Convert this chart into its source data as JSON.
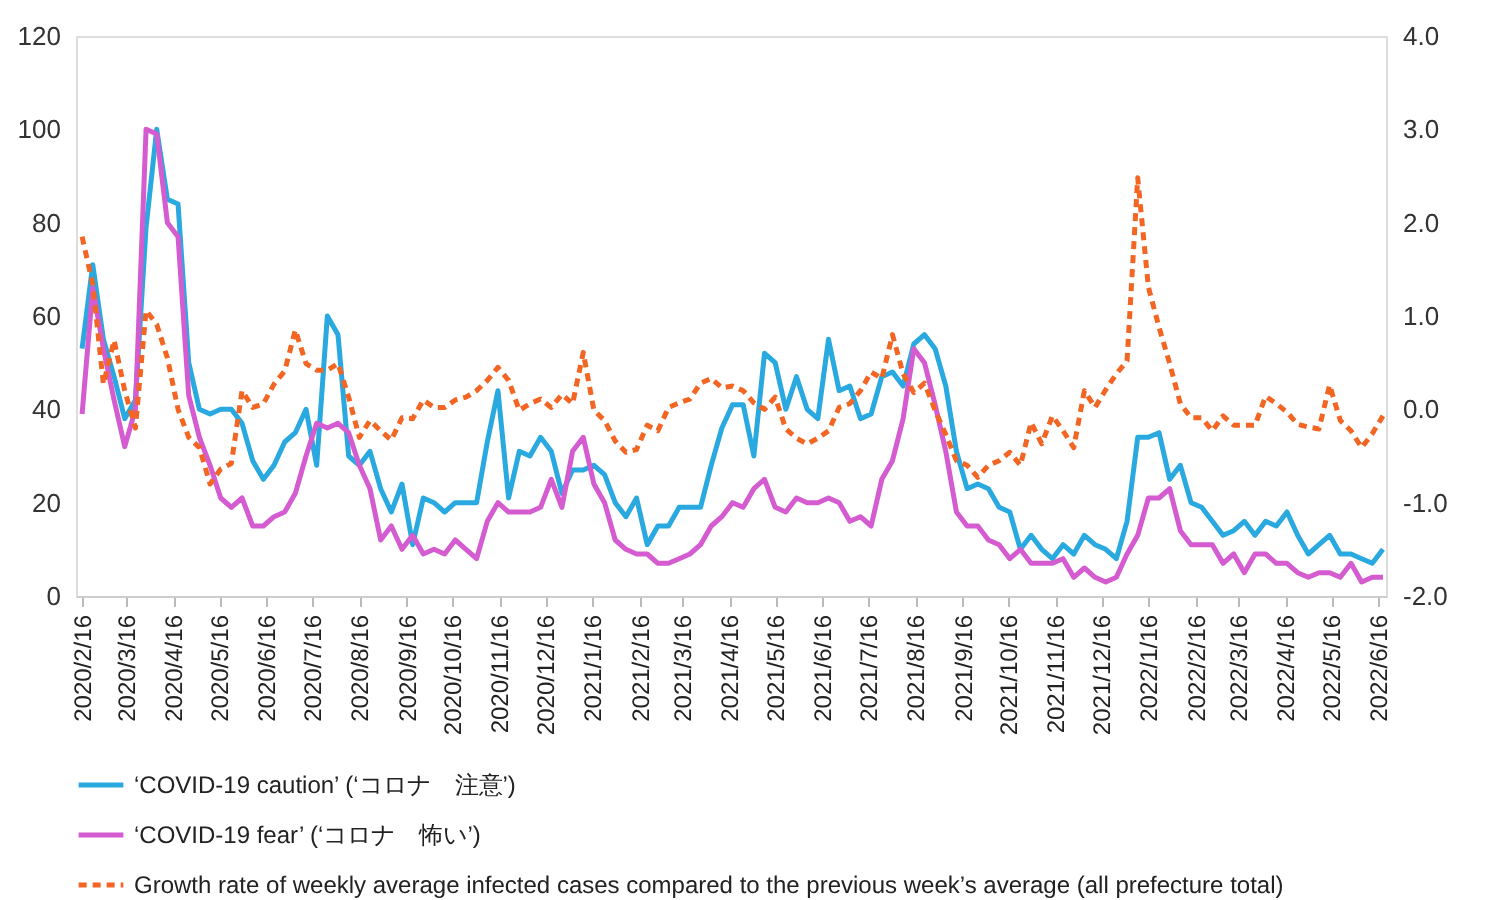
{
  "chart_data": {
    "type": "line",
    "x": [
      "2020-02-16",
      "2020-02-23",
      "2020-03-01",
      "2020-03-08",
      "2020-03-15",
      "2020-03-22",
      "2020-03-29",
      "2020-04-05",
      "2020-04-12",
      "2020-04-19",
      "2020-04-26",
      "2020-05-03",
      "2020-05-10",
      "2020-05-17",
      "2020-05-24",
      "2020-05-31",
      "2020-06-07",
      "2020-06-14",
      "2020-06-21",
      "2020-06-28",
      "2020-07-05",
      "2020-07-12",
      "2020-07-19",
      "2020-07-26",
      "2020-08-02",
      "2020-08-09",
      "2020-08-16",
      "2020-08-23",
      "2020-08-30",
      "2020-09-06",
      "2020-09-13",
      "2020-09-20",
      "2020-09-27",
      "2020-10-04",
      "2020-10-11",
      "2020-10-18",
      "2020-10-25",
      "2020-11-01",
      "2020-11-08",
      "2020-11-15",
      "2020-11-22",
      "2020-11-29",
      "2020-12-06",
      "2020-12-13",
      "2020-12-20",
      "2020-12-27",
      "2021-01-03",
      "2021-01-10",
      "2021-01-17",
      "2021-01-24",
      "2021-01-31",
      "2021-02-07",
      "2021-02-14",
      "2021-02-21",
      "2021-02-28",
      "2021-03-07",
      "2021-03-14",
      "2021-03-21",
      "2021-03-28",
      "2021-04-04",
      "2021-04-11",
      "2021-04-18",
      "2021-04-25",
      "2021-05-02",
      "2021-05-09",
      "2021-05-16",
      "2021-05-23",
      "2021-05-30",
      "2021-06-06",
      "2021-06-13",
      "2021-06-20",
      "2021-06-27",
      "2021-07-04",
      "2021-07-11",
      "2021-07-18",
      "2021-07-25",
      "2021-08-01",
      "2021-08-08",
      "2021-08-15",
      "2021-08-22",
      "2021-08-29",
      "2021-09-05",
      "2021-09-12",
      "2021-09-19",
      "2021-09-26",
      "2021-10-03",
      "2021-10-10",
      "2021-10-17",
      "2021-10-24",
      "2021-10-31",
      "2021-11-07",
      "2021-11-14",
      "2021-11-21",
      "2021-11-28",
      "2021-12-05",
      "2021-12-12",
      "2021-12-19",
      "2021-12-26",
      "2022-01-02",
      "2022-01-09",
      "2022-01-16",
      "2022-01-23",
      "2022-01-30",
      "2022-02-06",
      "2022-02-13",
      "2022-02-20",
      "2022-02-27",
      "2022-03-06",
      "2022-03-13",
      "2022-03-20",
      "2022-03-27",
      "2022-04-03",
      "2022-04-10",
      "2022-04-17",
      "2022-04-24",
      "2022-05-01",
      "2022-05-08",
      "2022-05-15",
      "2022-05-22",
      "2022-05-29",
      "2022-06-05",
      "2022-06-12",
      "2022-06-19"
    ],
    "series": [
      {
        "name": "‘COVID-19 caution’ (‘コロナ　注意’)",
        "color": "#29a9e0",
        "line_style": "solid",
        "values": [
          53,
          71,
          55,
          47,
          38,
          42,
          79,
          100,
          85,
          84,
          50,
          40,
          39,
          40,
          40,
          37,
          29,
          25,
          28,
          33,
          35,
          40,
          28,
          60,
          56,
          30,
          28,
          31,
          23,
          18,
          24,
          11,
          21,
          20,
          18,
          20,
          20,
          20,
          33,
          44,
          21,
          31,
          30,
          34,
          31,
          22,
          27,
          27,
          28,
          26,
          20,
          17,
          21,
          11,
          15,
          15,
          19,
          19,
          19,
          28,
          36,
          41,
          41,
          30,
          52,
          50,
          40,
          47,
          40,
          38,
          55,
          44,
          45,
          38,
          39,
          47,
          48,
          45,
          54,
          56,
          53,
          45,
          31,
          23,
          24,
          23,
          19,
          18,
          10,
          13,
          10,
          8,
          11,
          9,
          13,
          11,
          10,
          8,
          16,
          34,
          34,
          35,
          25,
          28,
          20,
          19,
          16,
          13,
          14,
          16,
          13,
          16,
          15,
          18,
          13,
          9,
          11,
          13,
          9,
          9,
          8,
          7,
          10
        ]
      },
      {
        "name": "‘COVID-19  fear’ (‘コロナ　怖い’)",
        "color": "#d45bd0",
        "line_style": "solid",
        "values": [
          39,
          66,
          53,
          42,
          32,
          40,
          100,
          99,
          80,
          77,
          43,
          34,
          28,
          21,
          19,
          21,
          15,
          15,
          17,
          18,
          22,
          30,
          37,
          36,
          37,
          35,
          28,
          23,
          12,
          15,
          10,
          13,
          9,
          10,
          9,
          12,
          10,
          8,
          16,
          20,
          18,
          18,
          18,
          19,
          25,
          19,
          31,
          34,
          24,
          20,
          12,
          10,
          9,
          9,
          7,
          7,
          8,
          9,
          11,
          15,
          17,
          20,
          19,
          23,
          25,
          19,
          18,
          21,
          20,
          20,
          21,
          20,
          16,
          17,
          15,
          25,
          29,
          38,
          53,
          50,
          41,
          31,
          18,
          15,
          15,
          12,
          11,
          8,
          10,
          7,
          7,
          7,
          8,
          4,
          6,
          4,
          3,
          4,
          9,
          13,
          21,
          21,
          23,
          14,
          11,
          11,
          11,
          7,
          9,
          5,
          9,
          9,
          7,
          7,
          5,
          4,
          5,
          5,
          4,
          7,
          3,
          4,
          4
        ]
      },
      {
        "name": "Growth rate of weekly average infected cases compared to the previous week’s average (all prefecture total)",
        "color": "#f26522",
        "line_style": "dashed",
        "axis": "y2",
        "values": [
          1.85,
          1.34,
          0.27,
          0.74,
          0.2,
          -0.2,
          1.06,
          0.91,
          0.55,
          0,
          -0.3,
          -0.41,
          -0.8,
          -0.64,
          -0.58,
          0.2,
          0.02,
          0.06,
          0.27,
          0.41,
          0.85,
          0.49,
          0.42,
          0.42,
          0.49,
          0.13,
          -0.3,
          -0.12,
          -0.23,
          -0.33,
          -0.09,
          -0.1,
          0.1,
          0.02,
          0.02,
          0.1,
          0.13,
          0.2,
          0.31,
          0.45,
          0.31,
          -0.01,
          0.06,
          0.11,
          0.02,
          0.16,
          0.06,
          0.61,
          -0.01,
          -0.12,
          -0.34,
          -0.46,
          -0.43,
          -0.17,
          -0.23,
          0.02,
          0.07,
          0.11,
          0.28,
          0.33,
          0.23,
          0.25,
          0.2,
          0.07,
          0,
          0.13,
          -0.21,
          -0.31,
          -0.37,
          -0.31,
          -0.23,
          0.02,
          0.06,
          0.2,
          0.4,
          0.33,
          0.8,
          0.38,
          0.18,
          0.28,
          -0.01,
          -0.27,
          -0.55,
          -0.6,
          -0.73,
          -0.6,
          -0.55,
          -0.46,
          -0.6,
          -0.14,
          -0.37,
          -0.07,
          -0.23,
          -0.41,
          0.2,
          0.02,
          0.21,
          0.38,
          0.52,
          2.48,
          1.31,
          0.88,
          0.49,
          0.06,
          -0.09,
          -0.09,
          -0.23,
          -0.07,
          -0.17,
          -0.17,
          -0.17,
          0.14,
          0.06,
          -0.03,
          -0.16,
          -0.19,
          -0.21,
          0.26,
          -0.12,
          -0.23,
          -0.41,
          -0.26,
          -0.07
        ]
      }
    ],
    "xlim": [
      "2020-02-12",
      "2022-06-21"
    ],
    "xticks": [
      {
        "value": "2020-02-16",
        "label": "2020/2/16"
      },
      {
        "value": "2020-03-16",
        "label": "2020/3/16"
      },
      {
        "value": "2020-04-16",
        "label": "2020/4/16"
      },
      {
        "value": "2020-05-16",
        "label": "2020/5/16"
      },
      {
        "value": "2020-06-16",
        "label": "2020/6/16"
      },
      {
        "value": "2020-07-16",
        "label": "2020/7/16"
      },
      {
        "value": "2020-08-16",
        "label": "2020/8/16"
      },
      {
        "value": "2020-09-16",
        "label": "2020/9/16"
      },
      {
        "value": "2020-10-16",
        "label": "2020/10/16"
      },
      {
        "value": "2020-11-16",
        "label": "2020/11/16"
      },
      {
        "value": "2020-12-16",
        "label": "2020/12/16"
      },
      {
        "value": "2021-01-16",
        "label": "2021/1/16"
      },
      {
        "value": "2021-02-16",
        "label": "2021/2/16"
      },
      {
        "value": "2021-03-16",
        "label": "2021/3/16"
      },
      {
        "value": "2021-04-16",
        "label": "2021/4/16"
      },
      {
        "value": "2021-05-16",
        "label": "2021/5/16"
      },
      {
        "value": "2021-06-16",
        "label": "2021/6/16"
      },
      {
        "value": "2021-07-16",
        "label": "2021/7/16"
      },
      {
        "value": "2021-08-16",
        "label": "2021/8/16"
      },
      {
        "value": "2021-09-16",
        "label": "2021/9/16"
      },
      {
        "value": "2021-10-16",
        "label": "2021/10/16"
      },
      {
        "value": "2021-11-16",
        "label": "2021/11/16"
      },
      {
        "value": "2021-12-16",
        "label": "2021/12/16"
      },
      {
        "value": "2022-01-16",
        "label": "2022/1/16"
      },
      {
        "value": "2022-02-16",
        "label": "2022/2/16"
      },
      {
        "value": "2022-03-16",
        "label": "2022/3/16"
      },
      {
        "value": "2022-04-16",
        "label": "2022/4/16"
      },
      {
        "value": "2022-05-16",
        "label": "2022/5/16"
      },
      {
        "value": "2022-06-16",
        "label": "2022/6/16"
      }
    ],
    "ylim": [
      0,
      120
    ],
    "yticks": [
      0,
      20,
      40,
      60,
      80,
      100,
      120
    ],
    "y2lim": [
      -2,
      4
    ],
    "y2ticks": [
      {
        "value": -2,
        "label": "-2.0"
      },
      {
        "value": -1,
        "label": "-1.0"
      },
      {
        "value": 0,
        "label": "0.0"
      },
      {
        "value": 1,
        "label": "1.0"
      },
      {
        "value": 2,
        "label": "2.0"
      },
      {
        "value": 3,
        "label": "3.0"
      },
      {
        "value": 4,
        "label": "4.0"
      }
    ],
    "grid": false,
    "legend": "bottom"
  }
}
